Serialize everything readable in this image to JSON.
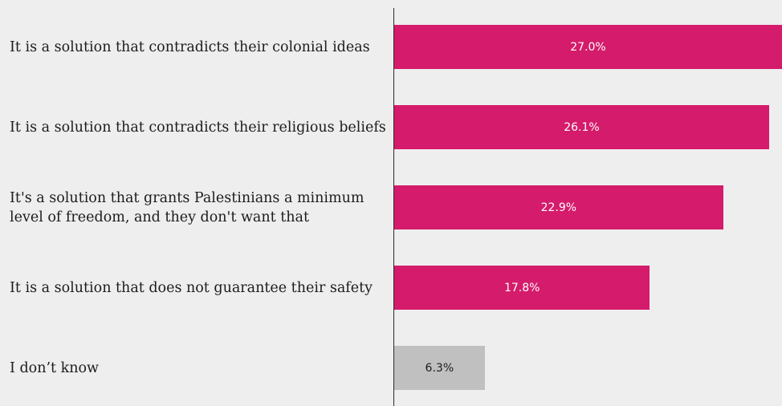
{
  "chart_data": {
    "type": "bar",
    "orientation": "horizontal",
    "categories": [
      "It is a solution that contradicts their colonial ideas",
      "It is a solution that contradicts their religious beliefs",
      "It's a solution that grants Palestinians a minimum level of freedom, and they don't want that",
      "It is a solution that does not guarantee their safety",
      "I don’t know"
    ],
    "values": [
      27.0,
      26.1,
      22.9,
      17.8,
      6.3
    ],
    "value_labels": [
      "27.0%",
      "26.1%",
      "22.9%",
      "17.8%",
      "6.3%"
    ],
    "bar_colors": [
      "#d51b6b",
      "#d51b6b",
      "#d51b6b",
      "#d51b6b",
      "#c0c0c0"
    ],
    "value_label_colors": [
      "#ffffff",
      "#ffffff",
      "#ffffff",
      "#ffffff",
      "#1c1c1c"
    ],
    "xlim": [
      0,
      27.0
    ],
    "grid": false,
    "legend": "none"
  }
}
